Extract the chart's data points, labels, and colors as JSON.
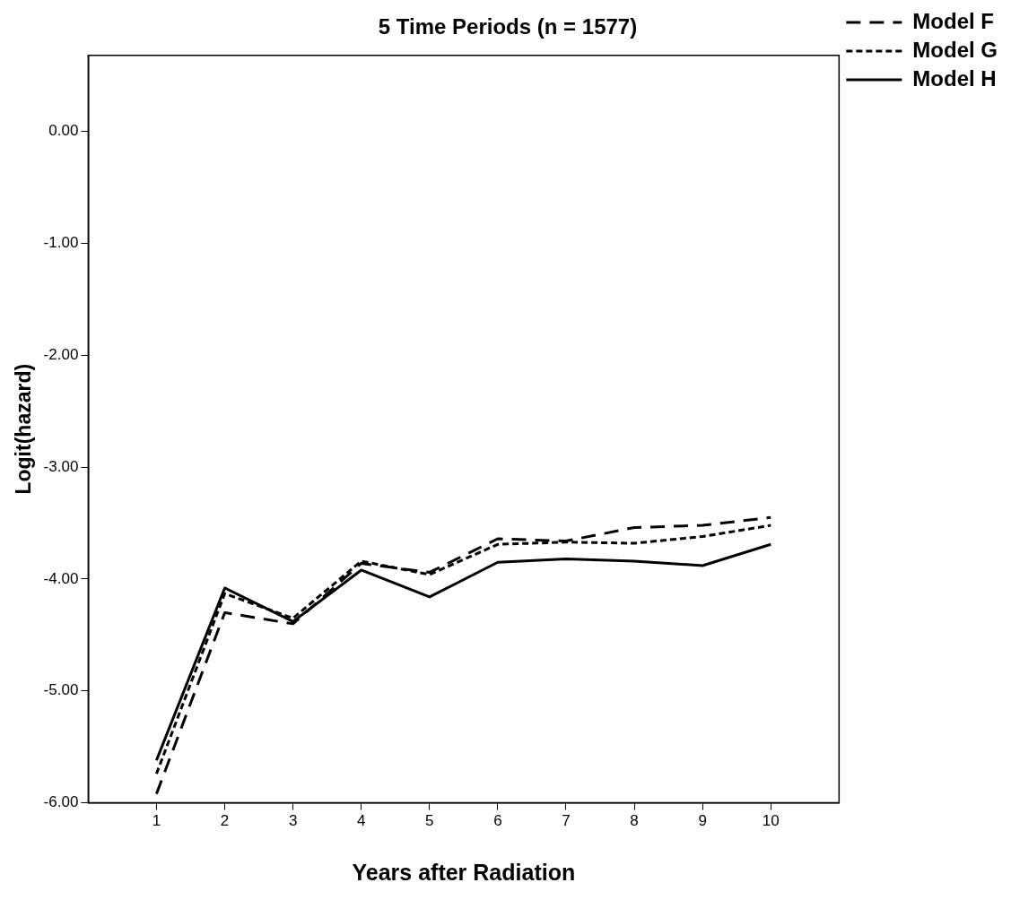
{
  "chart_data": {
    "type": "line",
    "title": "5 Time Periods (n = 1577)",
    "xlabel": "Years after Radiation",
    "ylabel": "Logit(hazard)",
    "x": [
      1,
      2,
      3,
      4,
      5,
      6,
      7,
      8,
      9,
      10
    ],
    "xlim": [
      0,
      11
    ],
    "xticks": [
      1,
      2,
      3,
      4,
      5,
      6,
      7,
      8,
      9,
      10
    ],
    "ylim": [
      -6,
      0.68
    ],
    "yticks": [
      {
        "value": 0,
        "label": "0.00"
      },
      {
        "value": -1,
        "label": "-1.00"
      },
      {
        "value": -2,
        "label": "-2.00"
      },
      {
        "value": -3,
        "label": "-3.00"
      },
      {
        "value": -4,
        "label": "-4.00"
      },
      {
        "value": -5,
        "label": "-5.00"
      },
      {
        "value": -6,
        "label": "-6.00"
      }
    ],
    "grid": false,
    "legend": "top right",
    "marker": "none",
    "series": [
      {
        "name": "Model F",
        "color": "#000000",
        "line_style": "dashed",
        "values": [
          -5.92,
          -4.3,
          -4.4,
          -3.86,
          -3.94,
          -3.64,
          -3.66,
          -3.54,
          -3.52,
          -3.45
        ]
      },
      {
        "name": "Model G",
        "color": "#000000",
        "line_style": "dotted",
        "values": [
          -5.74,
          -4.13,
          -4.35,
          -3.84,
          -3.96,
          -3.69,
          -3.67,
          -3.68,
          -3.62,
          -3.52
        ]
      },
      {
        "name": "Model H",
        "color": "#000000",
        "line_style": "solid",
        "values": [
          -5.62,
          -4.08,
          -4.38,
          -3.92,
          -4.16,
          -3.85,
          -3.82,
          -3.84,
          -3.88,
          -3.69
        ]
      }
    ]
  }
}
